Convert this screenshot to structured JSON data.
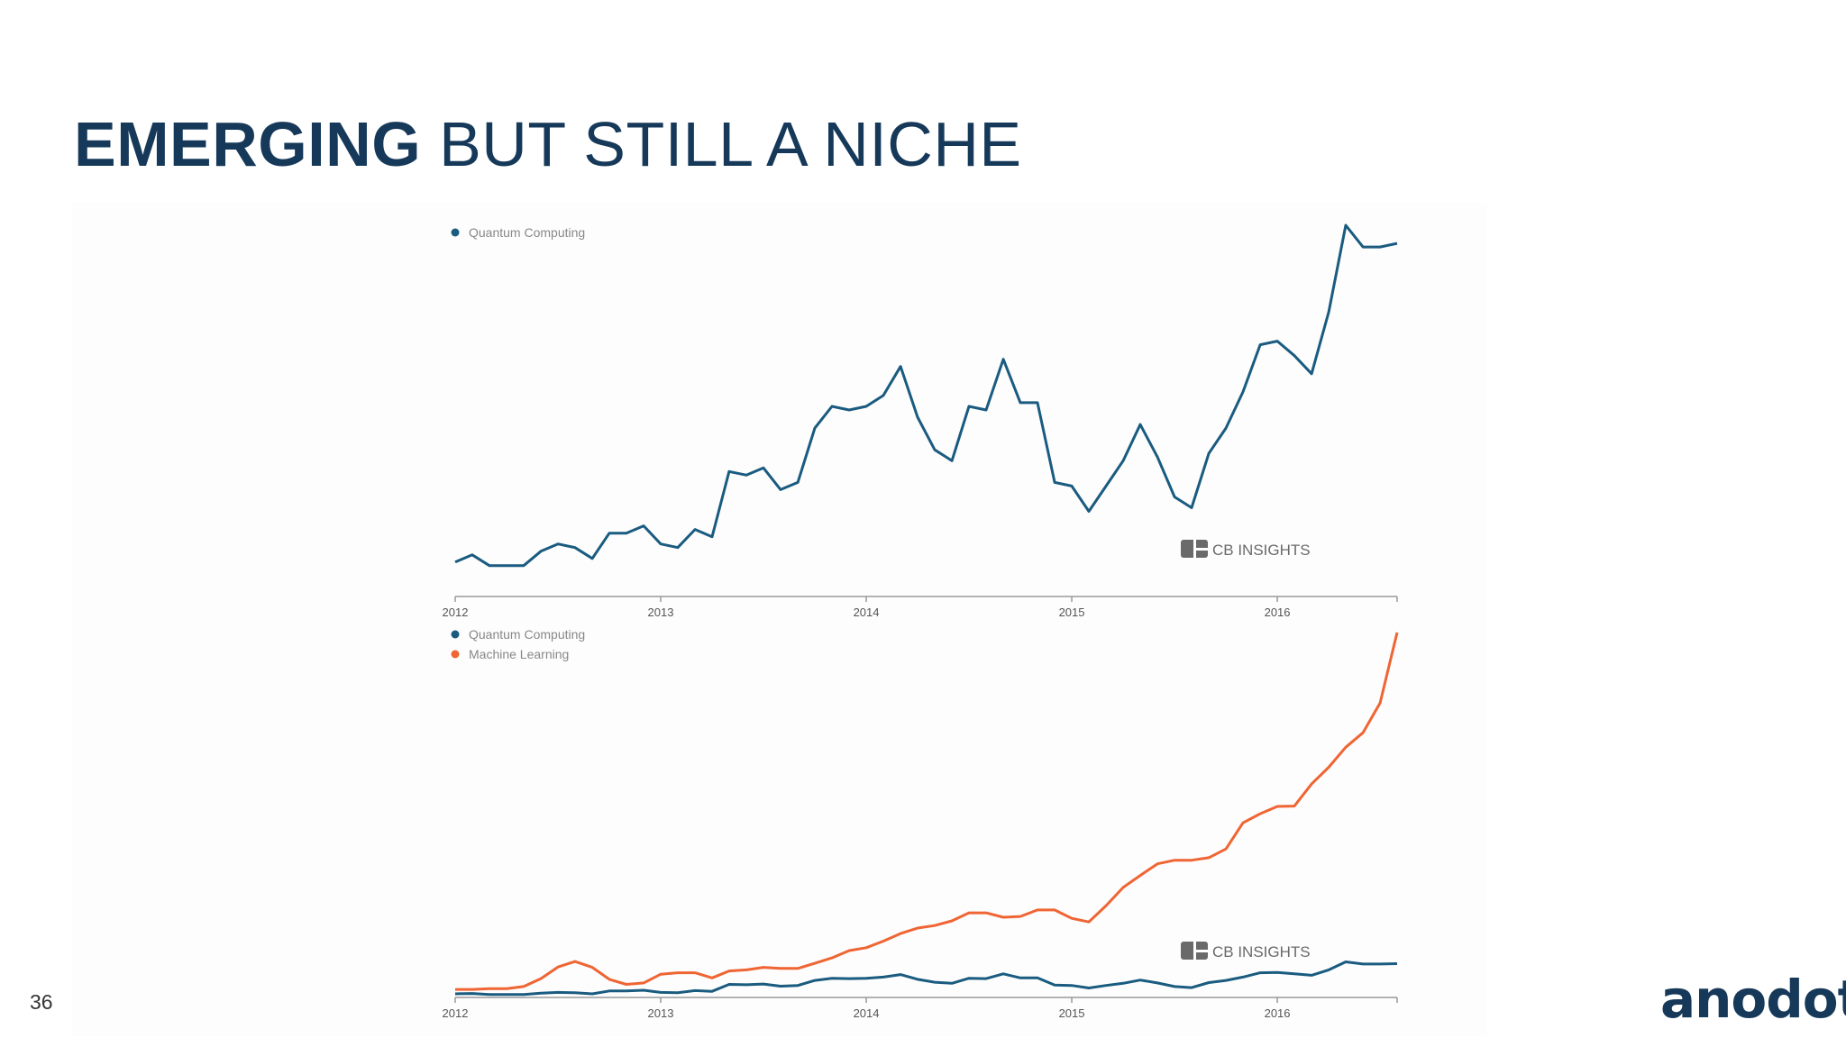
{
  "slide": {
    "title_bold": "EMERGING",
    "title_rest": " BUT STILL A NICHE",
    "page_number": "36",
    "logo_text": "anodot"
  },
  "colors": {
    "title": "#16395a",
    "quantum": "#1a5b80",
    "ml": "#ef6533",
    "axis": "#999999"
  },
  "chart_data": [
    {
      "type": "line",
      "title": "",
      "legend": [
        "Quantum Computing"
      ],
      "legend_placement": "top-left",
      "watermark": "CB INSIGHTS",
      "x_ticks": [
        "2012",
        "2013",
        "2014",
        "2015",
        "2016"
      ],
      "x": [
        2012.0,
        2012.083,
        2012.167,
        2012.25,
        2012.333,
        2012.417,
        2012.5,
        2012.583,
        2012.667,
        2012.75,
        2012.833,
        2012.917,
        2013.0,
        2013.083,
        2013.167,
        2013.25,
        2013.333,
        2013.417,
        2013.5,
        2013.583,
        2013.667,
        2013.75,
        2013.833,
        2013.917,
        2014.0,
        2014.083,
        2014.167,
        2014.25,
        2014.333,
        2014.417,
        2014.5,
        2014.583,
        2014.667,
        2014.75,
        2014.833,
        2014.917,
        2015.0,
        2015.083,
        2015.167,
        2015.25,
        2015.333,
        2015.417,
        2015.5,
        2015.583,
        2015.667,
        2015.75,
        2015.833,
        2015.917,
        2016.0,
        2016.083,
        2016.167,
        2016.25,
        2016.333,
        2016.417,
        2016.5,
        2016.583
      ],
      "ylim": [
        0,
        100
      ],
      "series": [
        {
          "name": "Quantum Computing",
          "values": [
            9,
            11,
            8,
            8,
            8,
            12,
            14,
            13,
            10,
            17,
            17,
            19,
            14,
            13,
            18,
            16,
            34,
            33,
            35,
            29,
            31,
            46,
            52,
            51,
            52,
            55,
            63,
            49,
            40,
            37,
            52,
            51,
            65,
            53,
            53,
            31,
            30,
            23,
            30,
            37,
            47,
            38,
            27,
            24,
            39,
            46,
            56,
            69,
            70,
            66,
            61,
            78,
            102,
            96,
            96,
            97
          ]
        }
      ]
    },
    {
      "type": "line",
      "title": "",
      "legend": [
        "Quantum Computing",
        "Machine Learning"
      ],
      "legend_placement": "top-left",
      "watermark": "CB INSIGHTS",
      "x_ticks": [
        "2012",
        "2013",
        "2014",
        "2015",
        "2016"
      ],
      "x": [
        2012.0,
        2012.083,
        2012.167,
        2012.25,
        2012.333,
        2012.417,
        2012.5,
        2012.583,
        2012.667,
        2012.75,
        2012.833,
        2012.917,
        2013.0,
        2013.083,
        2013.167,
        2013.25,
        2013.333,
        2013.417,
        2013.5,
        2013.583,
        2013.667,
        2013.75,
        2013.833,
        2013.917,
        2014.0,
        2014.083,
        2014.167,
        2014.25,
        2014.333,
        2014.417,
        2014.5,
        2014.583,
        2014.667,
        2014.75,
        2014.833,
        2014.917,
        2015.0,
        2015.083,
        2015.167,
        2015.25,
        2015.333,
        2015.417,
        2015.5,
        2015.583,
        2015.667,
        2015.75,
        2015.833,
        2015.917,
        2016.0,
        2016.083,
        2016.167,
        2016.25,
        2016.333,
        2016.417,
        2016.5,
        2016.583
      ],
      "ylim": [
        0,
        100
      ],
      "series": [
        {
          "name": "Quantum Computing",
          "values": [
            0.5,
            0.6,
            0.3,
            0.3,
            0.3,
            0.7,
            0.9,
            0.8,
            0.5,
            1.3,
            1.3,
            1.5,
            0.9,
            0.8,
            1.4,
            1.2,
            3.1,
            3.0,
            3.2,
            2.6,
            2.8,
            4.2,
            4.8,
            4.7,
            4.8,
            5.1,
            5.8,
            4.5,
            3.7,
            3.4,
            4.8,
            4.7,
            6.0,
            4.9,
            4.9,
            2.9,
            2.8,
            2.1,
            2.8,
            3.4,
            4.3,
            3.5,
            2.5,
            2.2,
            3.6,
            4.2,
            5.1,
            6.3,
            6.4,
            6.0,
            5.6,
            7.1,
            9.3,
            8.7,
            8.7,
            8.8
          ]
        },
        {
          "name": "Machine Learning",
          "values": [
            1.7,
            1.7,
            1.9,
            1.9,
            2.5,
            4.7,
            7.9,
            9.4,
            7.8,
            4.5,
            3.1,
            3.5,
            5.9,
            6.3,
            6.3,
            4.9,
            6.8,
            7.1,
            7.8,
            7.5,
            7.5,
            8.9,
            10.4,
            12.4,
            13.2,
            15.0,
            17.1,
            18.6,
            19.3,
            20.6,
            22.8,
            22.8,
            21.6,
            21.8,
            23.6,
            23.6,
            21.3,
            20.3,
            24.8,
            29.8,
            33.1,
            36.3,
            37.3,
            37.3,
            38.0,
            40.4,
            47.6,
            50.1,
            52.1,
            52.2,
            58.3,
            62.9,
            68.4,
            72.4,
            80.6,
            100
          ]
        }
      ]
    }
  ]
}
